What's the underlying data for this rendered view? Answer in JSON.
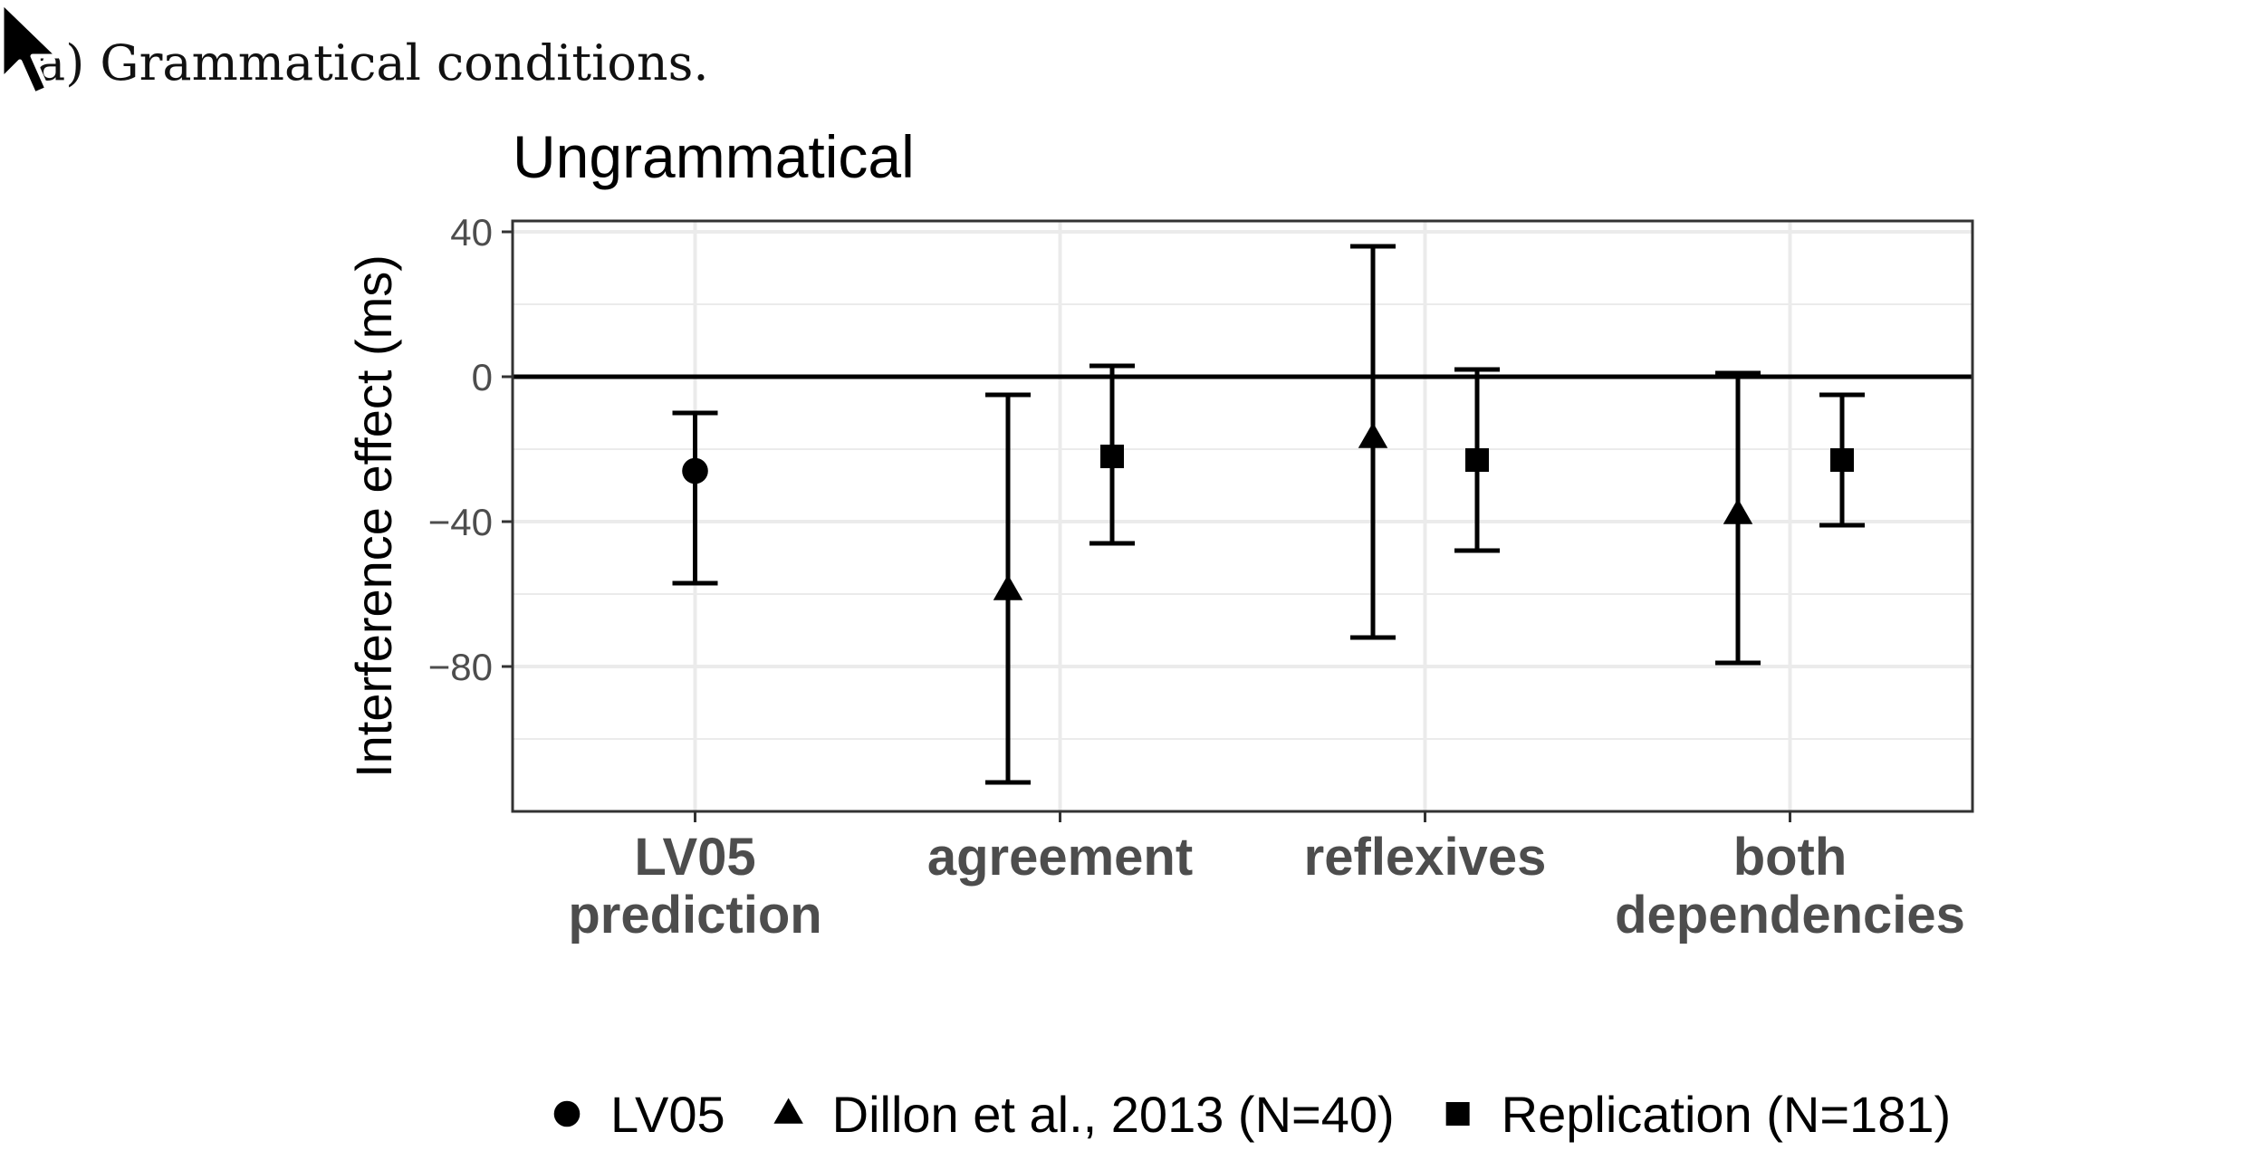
{
  "caption": "a) Grammatical conditions.",
  "chart_data": {
    "type": "errorbar",
    "title": "Ungrammatical",
    "xlabel": "",
    "ylabel": "Interference effect (ms)",
    "ylim": [
      -120,
      43
    ],
    "yticks": [
      40,
      0,
      -40,
      -80
    ],
    "ytick_labels": [
      "40",
      "0",
      "−40",
      "−80"
    ],
    "grid": true,
    "zero_line": true,
    "categories": [
      {
        "lines": [
          "LV05",
          "prediction"
        ]
      },
      {
        "lines": [
          "agreement"
        ]
      },
      {
        "lines": [
          "reflexives"
        ]
      },
      {
        "lines": [
          "both",
          "dependencies"
        ]
      }
    ],
    "series": [
      {
        "name": "LV05",
        "marker": "circle",
        "points": [
          {
            "category": 0,
            "mean": -26,
            "lower": -57,
            "upper": -10
          }
        ]
      },
      {
        "name": "Dillon et al., 2013 (N=40)",
        "marker": "triangle",
        "points": [
          {
            "category": 1,
            "mean": -59,
            "lower": -112,
            "upper": -5
          },
          {
            "category": 2,
            "mean": -17,
            "lower": -72,
            "upper": 36
          },
          {
            "category": 3,
            "mean": -38,
            "lower": -79,
            "upper": 1
          }
        ]
      },
      {
        "name": "Replication (N=181)",
        "marker": "square",
        "points": [
          {
            "category": 1,
            "mean": -22,
            "lower": -46,
            "upper": 3
          },
          {
            "category": 2,
            "mean": -23,
            "lower": -48,
            "upper": 2
          },
          {
            "category": 3,
            "mean": -23,
            "lower": -41,
            "upper": -5
          }
        ]
      }
    ],
    "legend": {
      "position": "bottom"
    },
    "colors": {
      "marks": "#000000",
      "grid": "#ebebeb",
      "frame": "#333333",
      "tick_text": "#4d4d4d"
    }
  }
}
